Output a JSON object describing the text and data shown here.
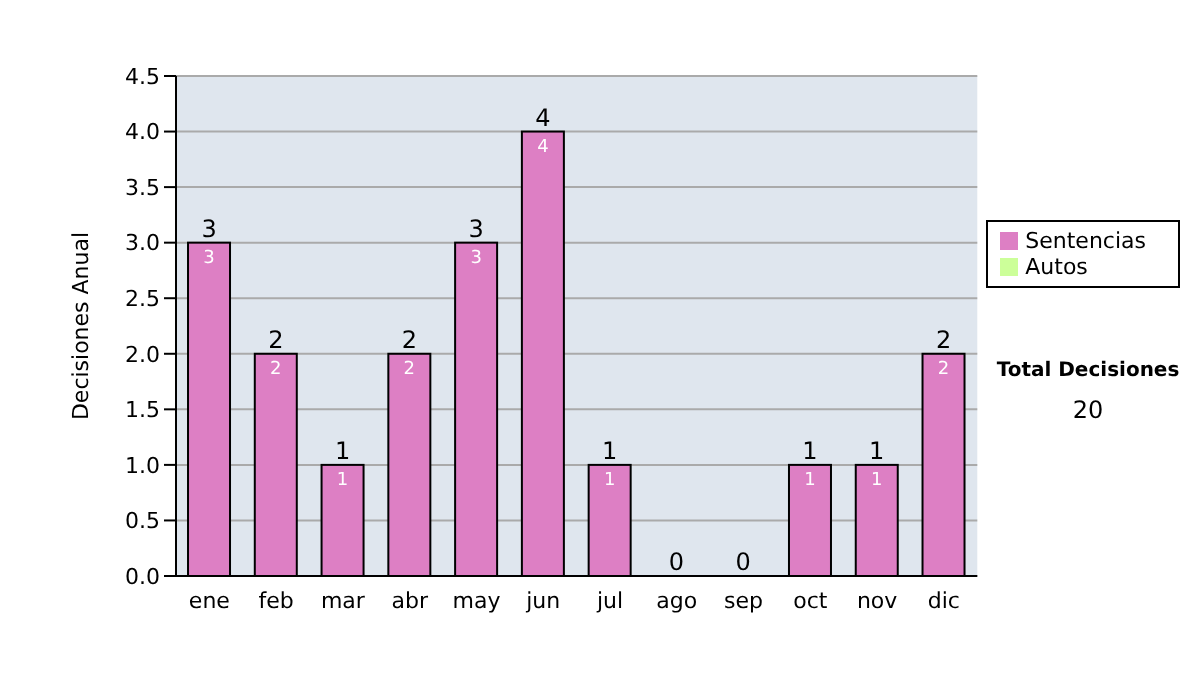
{
  "chart_data": {
    "type": "bar",
    "stacked": true,
    "ylabel": "Decisiones Anual",
    "categories": [
      "ene",
      "feb",
      "mar",
      "abr",
      "may",
      "jun",
      "jul",
      "ago",
      "sep",
      "oct",
      "nov",
      "dic"
    ],
    "series": [
      {
        "name": "Sentencias",
        "color": "#dd7fc4",
        "values": [
          3,
          2,
          1,
          2,
          3,
          4,
          1,
          0,
          0,
          1,
          1,
          2
        ],
        "value_labels": [
          "3",
          "2",
          "1",
          "2",
          "3",
          "4",
          "1",
          null,
          null,
          "1",
          "1",
          "2"
        ]
      },
      {
        "name": "Autos",
        "color": "#ccff99",
        "values": [
          0,
          0,
          0,
          0,
          0,
          0,
          0,
          0,
          0,
          0,
          0,
          0
        ]
      }
    ],
    "totals": [
      "3",
      "2",
      "1",
      "2",
      "3",
      "4",
      "1",
      "0",
      "0",
      "1",
      "1",
      "2"
    ],
    "ylim": [
      0,
      4.5
    ],
    "yticks": [
      {
        "value": 0,
        "label": "0.0"
      },
      {
        "value": 0.5,
        "label": "0.5"
      },
      {
        "value": 1,
        "label": "1.0"
      },
      {
        "value": 1.5,
        "label": "1.5"
      },
      {
        "value": 2,
        "label": "2.0"
      },
      {
        "value": 2.5,
        "label": "2.5"
      },
      {
        "value": 3,
        "label": "3.0"
      },
      {
        "value": 3.5,
        "label": "3.5"
      },
      {
        "value": 4,
        "label": "4.0"
      },
      {
        "value": 4.5,
        "label": "4.5"
      }
    ],
    "grid": "y",
    "legend": "right",
    "annotations": [
      "Total Decisiones",
      "20"
    ]
  }
}
